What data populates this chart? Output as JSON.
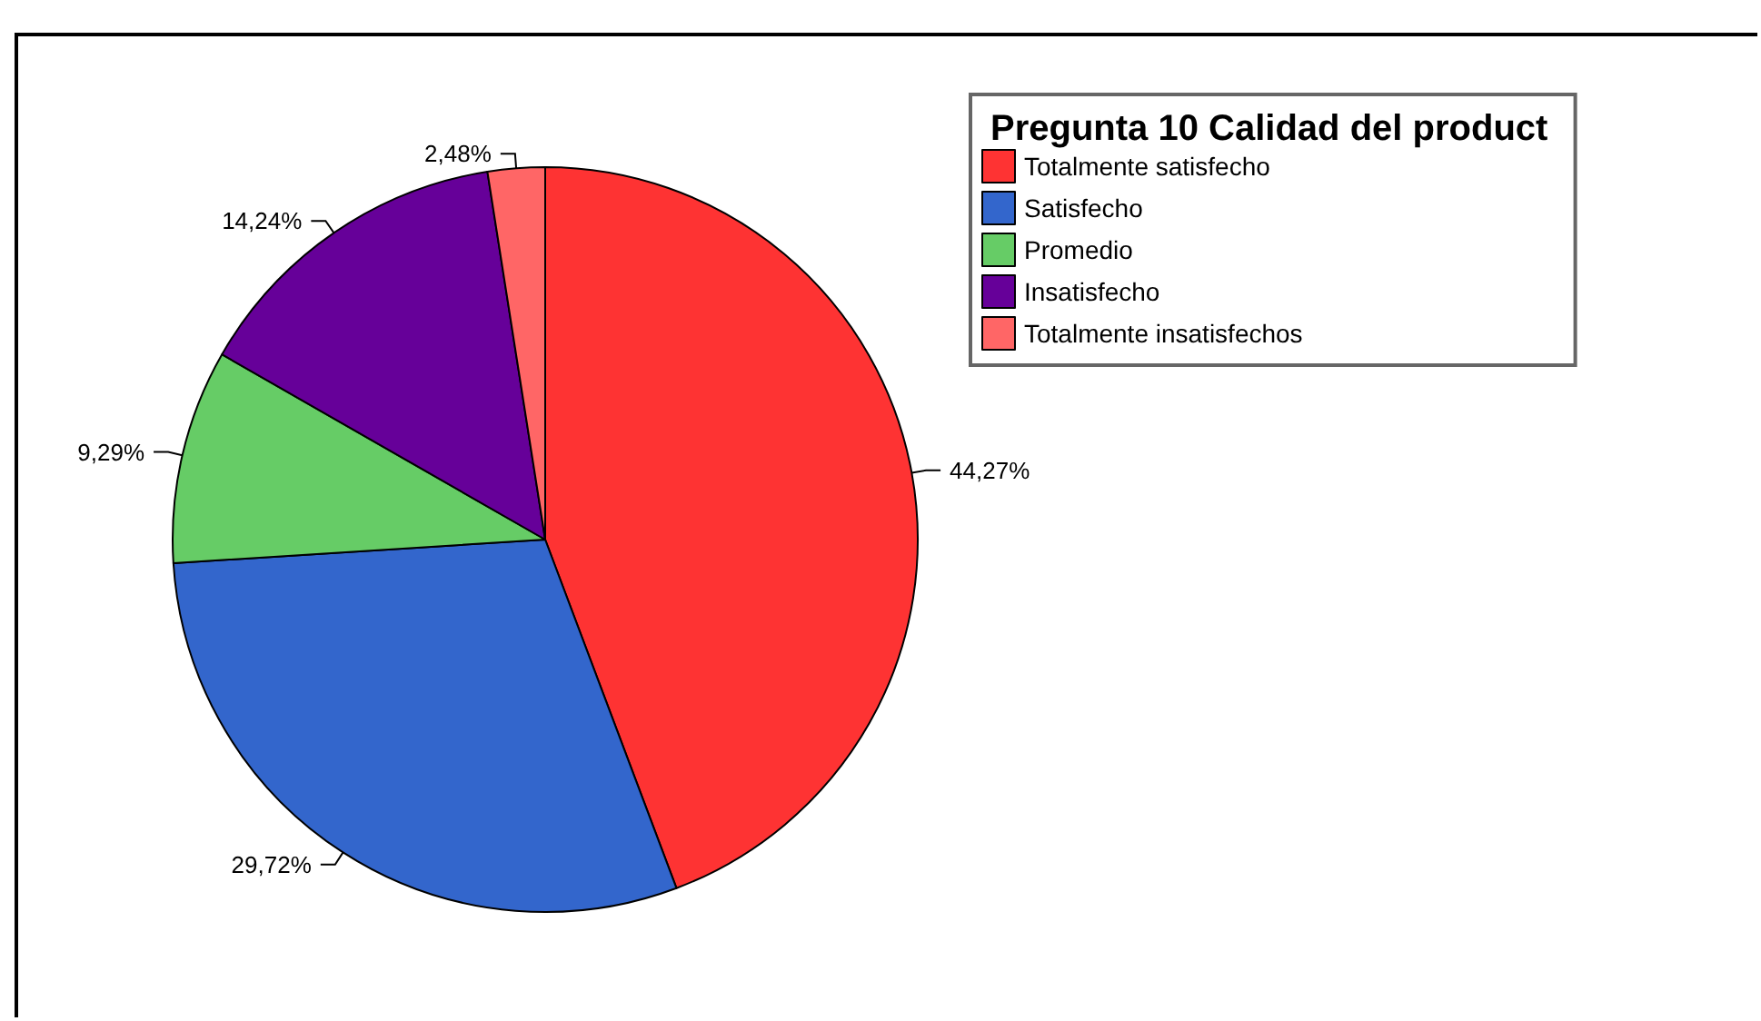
{
  "chart_data": {
    "type": "pie",
    "legend_title": "Pregunta 10 Calidad del product",
    "categories": [
      "Totalmente satisfecho",
      "Satisfecho",
      "Promedio",
      "Insatisfecho",
      "Totalmente insatisfechos"
    ],
    "values": [
      44.27,
      29.72,
      9.29,
      14.24,
      2.48
    ],
    "value_labels": [
      "44,27%",
      "29,72%",
      "9,29%",
      "14,24%",
      "2,48%"
    ],
    "colors": [
      "#fe3333",
      "#3366cc",
      "#66cc66",
      "#660099",
      "#ff6666"
    ],
    "legend": "top right"
  }
}
